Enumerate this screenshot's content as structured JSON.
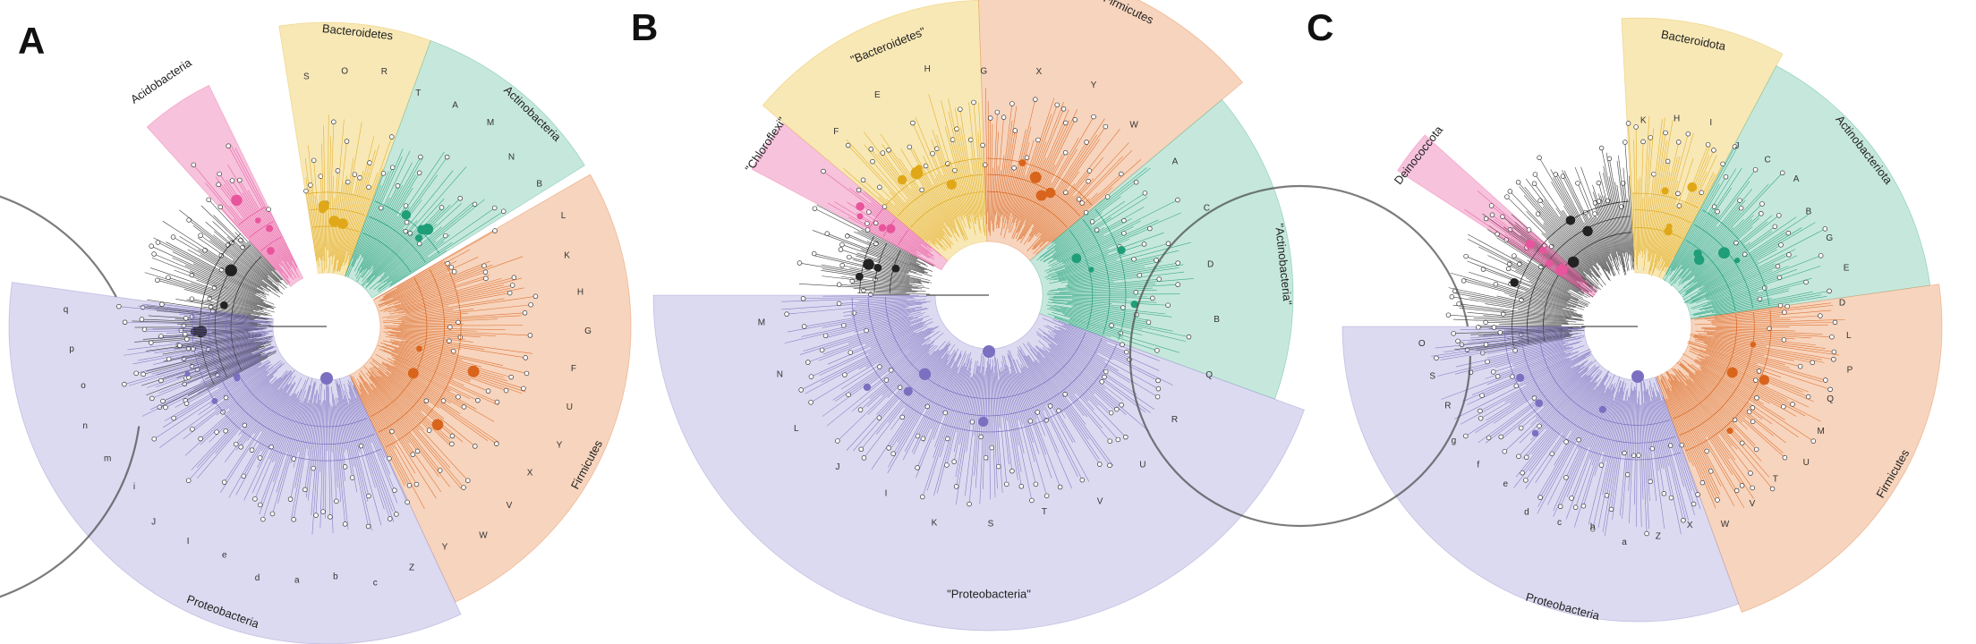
{
  "colors": {
    "proteobacteria": "#7a6fc0",
    "proteobacteria_bg": "#dcdaf0",
    "firmicutes": "#d9641c",
    "firmicutes_bg": "#f7d4bd",
    "actinobacteria": "#1f9e78",
    "actinobacteria_bg": "#c6e8dc",
    "bacteroidetes": "#e0a818",
    "bacteroidetes_bg": "#f8e8b6",
    "minor": "#e8559c",
    "minor_bg": "#f6c2dc",
    "other": "#222222"
  },
  "panels": [
    {
      "letter": "A",
      "clades": [
        {
          "name": "Acidobacteria",
          "color": "minor"
        },
        {
          "name": "Bacteroidetes",
          "color": "bacteroidetes"
        },
        {
          "name": "Actinobacteria",
          "color": "actinobacteria"
        },
        {
          "name": "Firmicutes",
          "color": "firmicutes"
        },
        {
          "name": "Proteobacteria",
          "color": "proteobacteria"
        }
      ],
      "leaf_labels": [
        "S",
        "O",
        "R",
        "T",
        "A",
        "M",
        "N",
        "B",
        "L",
        "K",
        "H",
        "G",
        "F",
        "U",
        "Y",
        "X",
        "V",
        "W",
        "Y",
        "Z",
        "c",
        "b",
        "a",
        "d",
        "e",
        "I",
        "J",
        "i",
        "m",
        "n",
        "o",
        "p",
        "q"
      ]
    },
    {
      "letter": "B",
      "clades": [
        {
          "name": "\"Chloroflexi\"",
          "color": "minor"
        },
        {
          "name": "\"Bacteroidetes\"",
          "color": "bacteroidetes"
        },
        {
          "name": "Firmicutes",
          "color": "firmicutes"
        },
        {
          "name": "\"Actinobacteria\"",
          "color": "actinobacteria"
        },
        {
          "name": "\"Proteobacteria\"",
          "color": "proteobacteria"
        }
      ],
      "leaf_labels": [
        "F",
        "E",
        "H",
        "G",
        "X",
        "Y",
        "W",
        "A",
        "C",
        "D",
        "B",
        "Q",
        "R",
        "U",
        "V",
        "T",
        "S",
        "K",
        "I",
        "J",
        "L",
        "N",
        "M"
      ]
    },
    {
      "letter": "C",
      "clades": [
        {
          "name": "Deinococcota",
          "color": "minor"
        },
        {
          "name": "Bacteroidota",
          "color": "bacteroidetes"
        },
        {
          "name": "Actinobacteriota",
          "color": "actinobacteriota"
        },
        {
          "name": "Firmicutes",
          "color": "firmicutes"
        },
        {
          "name": "Proteobacteria",
          "color": "proteobacteria"
        }
      ],
      "leaf_labels": [
        "K",
        "H",
        "I",
        "J",
        "C",
        "A",
        "B",
        "G",
        "E",
        "D",
        "L",
        "P",
        "Q",
        "M",
        "U",
        "T",
        "V",
        "W",
        "X",
        "Z",
        "a",
        "b",
        "c",
        "d",
        "e",
        "f",
        "g",
        "R",
        "S",
        "O"
      ]
    }
  ]
}
